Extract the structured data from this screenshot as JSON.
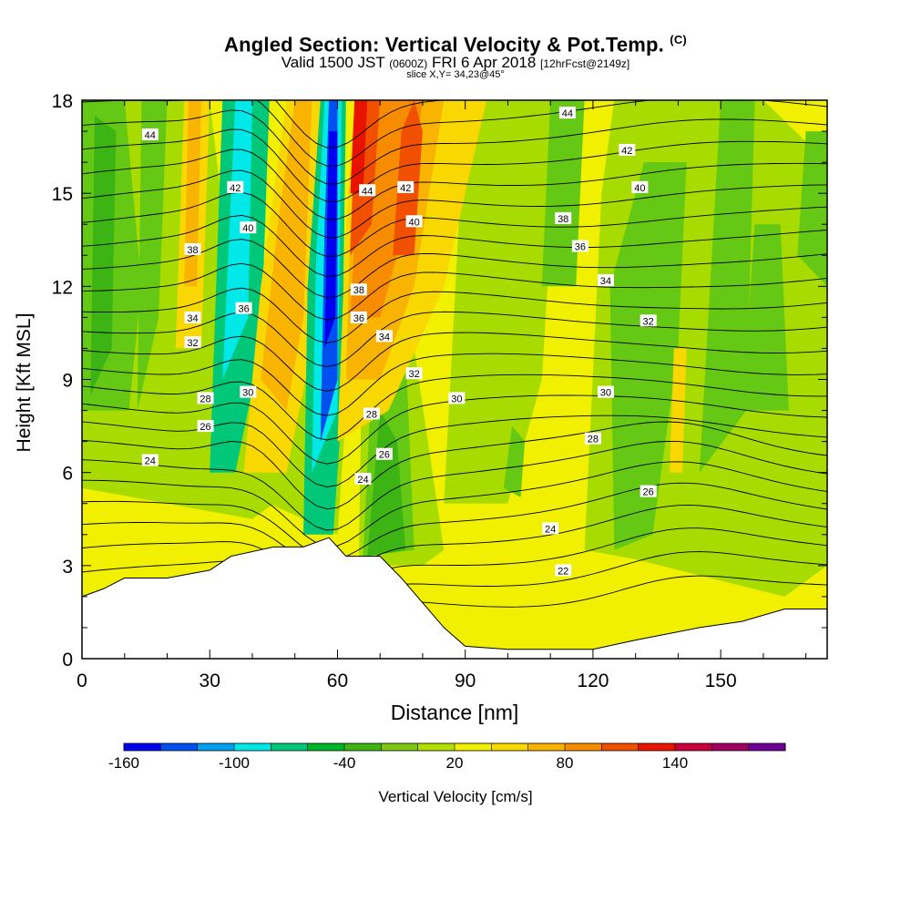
{
  "chart_data": {
    "type": "heatmap",
    "title": {
      "main": "Angled Section: Vertical Velocity & Pot.Temp.",
      "main_units": "(C)",
      "valid_prefix": "Valid 1500 JST",
      "valid_z": "(0600Z)",
      "valid_date": "FRI 6 Apr 2018",
      "forecast": "[12hrFcst@2149z]",
      "slice": "slice X,Y= 34,23@45°"
    },
    "xlabel": "Distance [nm]",
    "ylabel": "Height [Kft MSL]",
    "xlim": [
      0,
      175
    ],
    "ylim": [
      0,
      18
    ],
    "x_ticks": [
      0,
      30,
      60,
      90,
      120,
      150
    ],
    "y_ticks": [
      0,
      3,
      6,
      9,
      12,
      15,
      18
    ],
    "colorbar": {
      "label": "Vertical Velocity [cm/s]",
      "tick_labels": [
        "-160",
        "-100",
        "-40",
        "20",
        "80",
        "140"
      ],
      "colors": [
        "#0000f0",
        "#0050f0",
        "#00a0f0",
        "#00e8e8",
        "#00c878",
        "#00b428",
        "#40b414",
        "#80c814",
        "#b4e000",
        "#f0f000",
        "#f8d800",
        "#f8b400",
        "#f88c00",
        "#f05000",
        "#e81400",
        "#c8003c",
        "#a00064",
        "#6e0096"
      ]
    },
    "field_colors": {
      "terrain": "#ffffff",
      "neutral": "#f0f000",
      "weak_down": "#a8dc00",
      "mod_down": "#64c814",
      "down": "#3cb414",
      "strong_down": "#00c878",
      "very_strong_down": "#00e8e8",
      "extreme_down_1": "#0050f0",
      "extreme_down_2": "#0000f0",
      "weak_up": "#f8d800",
      "mod_up": "#f8b400",
      "up": "#f88c00",
      "strong_up": "#f05000",
      "very_strong_up": "#e81400"
    },
    "terrain_profile": [
      [
        0,
        2
      ],
      [
        5,
        2.25
      ],
      [
        10,
        2.6
      ],
      [
        20,
        2.6
      ],
      [
        30,
        2.85
      ],
      [
        35,
        3.3
      ],
      [
        45,
        3.6
      ],
      [
        52,
        3.6
      ],
      [
        58,
        3.9
      ],
      [
        62,
        3.3
      ],
      [
        70,
        3.3
      ],
      [
        75,
        2.6
      ],
      [
        80,
        1.8
      ],
      [
        85,
        1.0
      ],
      [
        90,
        0.4
      ],
      [
        100,
        0.3
      ],
      [
        120,
        0.3
      ],
      [
        130,
        0.6
      ],
      [
        145,
        1.0
      ],
      [
        155,
        1.2
      ],
      [
        165,
        1.6
      ],
      [
        175,
        1.6
      ]
    ],
    "theta_contours": [
      {
        "label": "22",
        "label_at": [
          113,
          2.85
        ]
      },
      {
        "label": "24",
        "label_at": [
          16,
          6.4
        ]
      },
      {
        "label": "24",
        "label_at": [
          110,
          4.2
        ]
      },
      {
        "label": "24",
        "label_at": [
          66,
          5.8
        ]
      },
      {
        "label": "26",
        "label_at": [
          29,
          7.5
        ]
      },
      {
        "label": "26",
        "label_at": [
          71,
          6.6
        ]
      },
      {
        "label": "26",
        "label_at": [
          133,
          5.4
        ]
      },
      {
        "label": "28",
        "label_at": [
          29,
          8.4
        ]
      },
      {
        "label": "28",
        "label_at": [
          68,
          7.9
        ]
      },
      {
        "label": "28",
        "label_at": [
          120,
          7.1
        ]
      },
      {
        "label": "30",
        "label_at": [
          39,
          8.6
        ]
      },
      {
        "label": "30",
        "label_at": [
          88,
          8.4
        ]
      },
      {
        "label": "30",
        "label_at": [
          123,
          8.6
        ]
      },
      {
        "label": "32",
        "label_at": [
          26,
          10.2
        ]
      },
      {
        "label": "32",
        "label_at": [
          78,
          9.2
        ]
      },
      {
        "label": "32",
        "label_at": [
          133,
          10.9
        ]
      },
      {
        "label": "34",
        "label_at": [
          26,
          11.0
        ]
      },
      {
        "label": "34",
        "label_at": [
          71,
          10.4
        ]
      },
      {
        "label": "34",
        "label_at": [
          123,
          12.2
        ]
      },
      {
        "label": "36",
        "label_at": [
          38,
          11.3
        ]
      },
      {
        "label": "36",
        "label_at": [
          65,
          11.0
        ]
      },
      {
        "label": "36",
        "label_at": [
          117,
          13.3
        ]
      },
      {
        "label": "38",
        "label_at": [
          26,
          13.2
        ]
      },
      {
        "label": "38",
        "label_at": [
          65,
          11.9
        ]
      },
      {
        "label": "38",
        "label_at": [
          113,
          14.2
        ]
      },
      {
        "label": "40",
        "label_at": [
          39,
          13.9
        ]
      },
      {
        "label": "40",
        "label_at": [
          78,
          14.1
        ]
      },
      {
        "label": "40",
        "label_at": [
          131,
          15.2
        ]
      },
      {
        "label": "42",
        "label_at": [
          36,
          15.2
        ]
      },
      {
        "label": "42",
        "label_at": [
          76,
          15.2
        ]
      },
      {
        "label": "42",
        "label_at": [
          128,
          16.4
        ]
      },
      {
        "label": "44",
        "label_at": [
          16,
          16.9
        ]
      },
      {
        "label": "44",
        "label_at": [
          67,
          15.1
        ]
      },
      {
        "label": "44",
        "label_at": [
          114,
          17.6
        ]
      }
    ]
  }
}
